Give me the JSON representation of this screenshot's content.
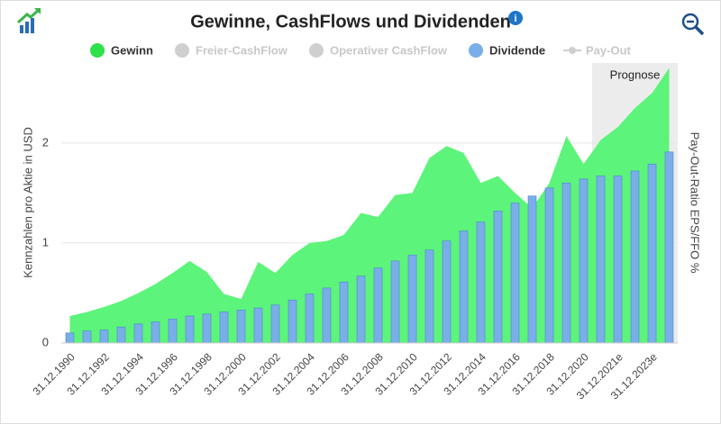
{
  "chart_data": {
    "type": "combo",
    "title": "Gewinne, CashFlows und Dividenden",
    "y_label": "Kennzahlen pro Aktie in USD",
    "y2_label": "Pay-Out-Ratio EPS/FFO %",
    "band_label": "Prognose",
    "categories": [
      "31.12.1990",
      null,
      "31.12.1992",
      null,
      "31.12.1994",
      null,
      "31.12.1996",
      null,
      "31.12.1998",
      null,
      "31.12.2000",
      null,
      "31.12.2002",
      null,
      "31.12.2004",
      null,
      "31.12.2006",
      null,
      "31.12.2008",
      null,
      "31.12.2010",
      null,
      "31.12.2012",
      null,
      "31.12.2014",
      null,
      "31.12.2016",
      null,
      "31.12.2018",
      null,
      "31.12.2020",
      null,
      "31.12.2021e",
      null,
      "31.12.2023e",
      null
    ],
    "series": [
      {
        "name": "Gewinn",
        "type": "area",
        "color": "#5cf47a",
        "legend_color": "#2ee04a",
        "values": [
          0.27,
          0.31,
          0.36,
          0.42,
          0.5,
          0.59,
          0.7,
          0.82,
          0.71,
          0.49,
          0.44,
          0.81,
          0.7,
          0.88,
          1.0,
          1.02,
          1.08,
          1.3,
          1.26,
          1.48,
          1.5,
          1.85,
          1.97,
          1.9,
          1.6,
          1.67,
          1.5,
          1.35,
          1.6,
          2.07,
          1.79,
          2.03,
          2.16,
          2.35,
          2.5,
          2.75
        ]
      },
      {
        "name": "Dividende",
        "type": "bar",
        "color": "#7aaee8",
        "legend_color": "#7aaee8",
        "values": [
          0.1,
          0.12,
          0.13,
          0.16,
          0.19,
          0.21,
          0.24,
          0.27,
          0.29,
          0.31,
          0.33,
          0.35,
          0.38,
          0.43,
          0.49,
          0.55,
          0.61,
          0.67,
          0.75,
          0.82,
          0.88,
          0.93,
          1.02,
          1.12,
          1.21,
          1.32,
          1.4,
          1.47,
          1.55,
          1.6,
          1.64,
          1.67,
          1.67,
          1.72,
          1.79,
          1.91
        ]
      }
    ],
    "legend": [
      "Gewinn",
      "Freier-CashFlow",
      "Operativer CashFlow",
      "Dividende",
      "Pay-Out"
    ],
    "legend_active": [
      true,
      false,
      false,
      true,
      false
    ],
    "forecast_start_index": 31,
    "ylim": [
      0,
      2.8
    ],
    "yticks": [
      0,
      1,
      2
    ],
    "grid": true
  }
}
